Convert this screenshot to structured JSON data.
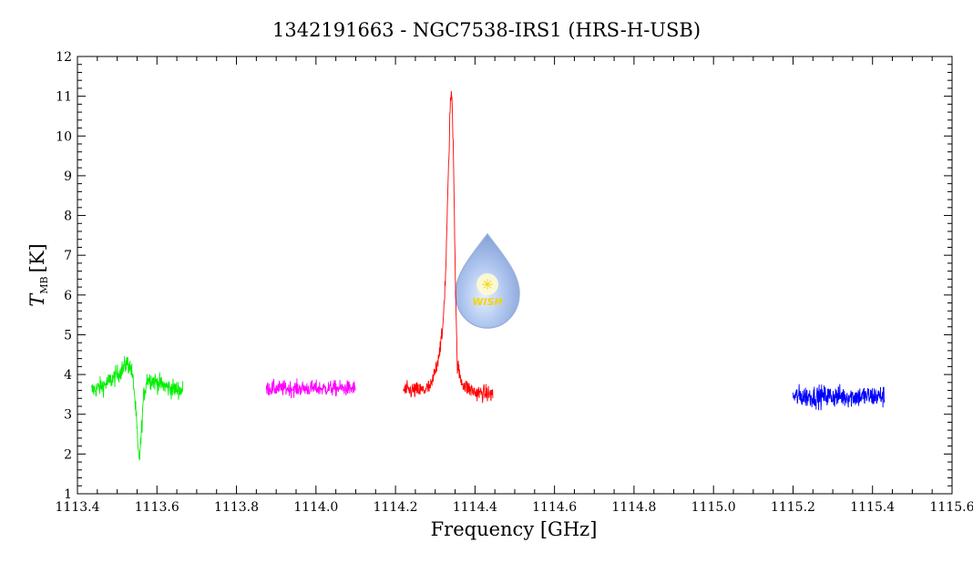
{
  "chart_data": {
    "type": "line",
    "title": "1342191663 - NGC7538-IRS1 (HRS-H-USB)",
    "xlabel": "Frequency [GHz]",
    "ylabel_main": "T",
    "ylabel_sub": "MB",
    "ylabel_unit": "[K]",
    "xlim": [
      1113.4,
      1115.6
    ],
    "ylim": [
      1,
      12
    ],
    "xticks": [
      "1113.4",
      "1113.6",
      "1113.8",
      "1114.0",
      "1114.2",
      "1114.4",
      "1114.6",
      "1114.8",
      "1115.0",
      "1115.2",
      "1115.4",
      "1115.6"
    ],
    "yticks": [
      "1",
      "2",
      "3",
      "4",
      "5",
      "6",
      "7",
      "8",
      "9",
      "10",
      "11",
      "12"
    ],
    "watermark": "WISH",
    "series": [
      {
        "color": "#00ee00",
        "noise": 0.17,
        "x": [
          1113.435,
          1113.45,
          1113.47,
          1113.49,
          1113.505,
          1113.515,
          1113.525,
          1113.535,
          1113.542,
          1113.548,
          1113.553,
          1113.556,
          1113.56,
          1113.566,
          1113.575,
          1113.59,
          1113.61,
          1113.635,
          1113.665
        ],
        "y": [
          3.6,
          3.65,
          3.75,
          3.9,
          4.05,
          4.15,
          4.3,
          4.15,
          3.7,
          2.9,
          2.0,
          1.9,
          2.4,
          3.4,
          3.9,
          3.85,
          3.75,
          3.65,
          3.6
        ]
      },
      {
        "color": "#ff00ff",
        "noise": 0.14,
        "x": [
          1113.875,
          1114.1
        ],
        "y": [
          3.65,
          3.65
        ]
      },
      {
        "color": "#ff0000",
        "noise": 0.15,
        "x": [
          1114.22,
          1114.27,
          1114.29,
          1114.305,
          1114.318,
          1114.326,
          1114.333,
          1114.338,
          1114.342,
          1114.346,
          1114.35,
          1114.355,
          1114.363,
          1114.375,
          1114.4,
          1114.445
        ],
        "y": [
          3.6,
          3.6,
          3.7,
          4.3,
          5.0,
          6.5,
          9.0,
          10.9,
          11.0,
          9.5,
          6.8,
          4.3,
          3.9,
          3.7,
          3.55,
          3.5
        ]
      },
      {
        "color": "#0000ff",
        "noise": 0.2,
        "x": [
          1115.2,
          1115.43
        ],
        "y": [
          3.45,
          3.45
        ]
      }
    ]
  }
}
